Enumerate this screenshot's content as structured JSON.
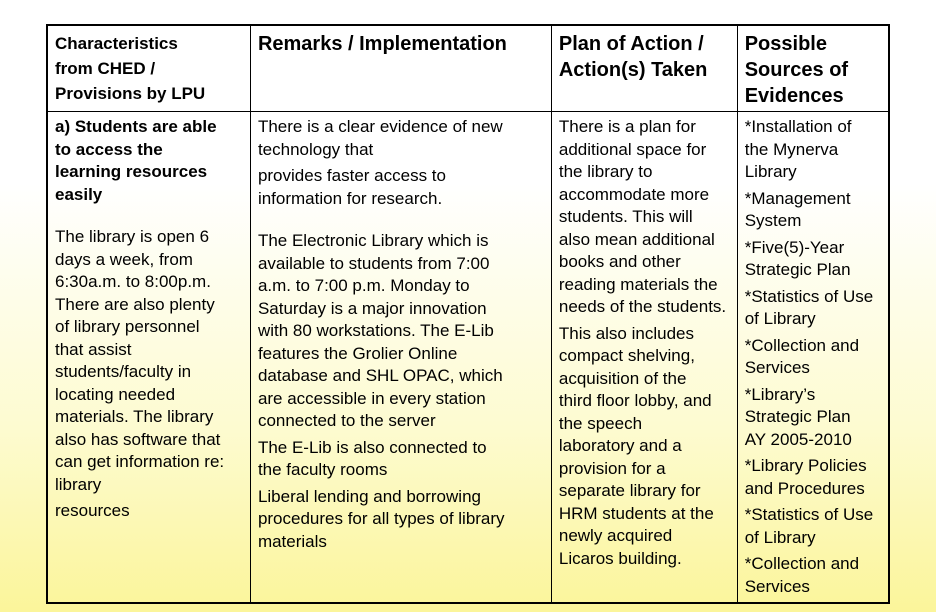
{
  "headers": [
    [
      "Characteristics",
      "from CHED /",
      "Provisions by LPU"
    ],
    [
      "Remarks / Implementation"
    ],
    [
      "Plan of Action /",
      "Action(s) Taken"
    ],
    [
      "Possible",
      "Sources of",
      "Evidences"
    ]
  ],
  "columns": [
    [
      {
        "bold": true,
        "lines": [
          "a) Students are able",
          "to access the",
          "learning resources",
          "easily"
        ]
      },
      {
        "gap": true,
        "lines": [
          "The library is open 6",
          "days a week, from",
          "6:30a.m. to 8:00p.m.",
          "There are also plenty",
          "of library personnel",
          "that assist",
          "students/faculty in",
          "locating needed",
          "materials. The library",
          "also has software that",
          "can get information re:",
          "library"
        ]
      },
      {
        "lines": [
          "resources"
        ]
      }
    ],
    [
      {
        "lines": [
          "There is a clear evidence of new",
          "technology that"
        ]
      },
      {
        "lines": [
          "provides faster access to",
          "information for research."
        ]
      },
      {
        "gap": true,
        "lines": [
          "The Electronic Library which is",
          "available to students from 7:00",
          "a.m. to 7:00 p.m. Monday to",
          "Saturday is a major innovation",
          "with 80 workstations. The E-Lib",
          "features the Grolier Online",
          "database and SHL OPAC, which",
          "are accessible in every station",
          "connected to the server"
        ]
      },
      {
        "lines": [
          "The E-Lib is also connected to",
          "the faculty rooms"
        ]
      },
      {
        "lines": [
          "Liberal lending and borrowing",
          "procedures for all types of library",
          "materials"
        ]
      }
    ],
    [
      {
        "lines": [
          "There is a plan for",
          "additional space for",
          "the library to",
          "accommodate more",
          "students. This will",
          "also mean additional",
          "books and other",
          "reading materials the",
          "needs of the students."
        ]
      },
      {
        "lines": [
          "This also includes",
          "compact shelving,",
          "acquisition of the",
          "third floor lobby, and",
          "the speech",
          "laboratory and a",
          "provision for a",
          "separate library for",
          "HRM students at the",
          "newly acquired",
          "Licaros building."
        ]
      }
    ],
    [
      {
        "lines": [
          "*Installation of",
          "the Mynerva",
          "Library"
        ]
      },
      {
        "lines": [
          "*Management",
          "System"
        ]
      },
      {
        "lines": [
          "*Five(5)-Year",
          "Strategic Plan"
        ]
      },
      {
        "lines": [
          "*Statistics of Use",
          "of Library"
        ]
      },
      {
        "lines": [
          "*Collection and",
          "Services"
        ]
      },
      {
        "lines": [
          "*Library’s",
          "Strategic Plan",
          "AY 2005-2010"
        ]
      },
      {
        "lines": [
          "*Library Policies",
          "and Procedures"
        ]
      },
      {
        "lines": [
          "*Statistics of Use",
          "of Library"
        ]
      },
      {
        "lines": [
          "*Collection and",
          "Services"
        ]
      }
    ]
  ]
}
